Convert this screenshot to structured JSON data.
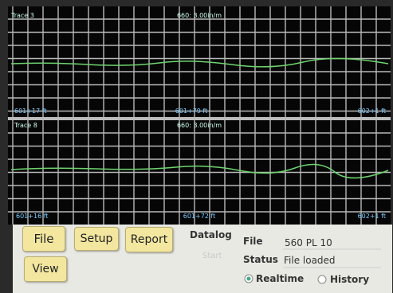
{
  "traces": [
    {
      "title": "Trace 3",
      "scale": "660: 3.00in/m",
      "positions": [
        "601+17 ft",
        "601+79 ft",
        "602+1 ft"
      ]
    },
    {
      "title": "Trace 8",
      "scale": "660: 3.00in/m",
      "positions": [
        "601+16 ft",
        "601+72 ft",
        "602+1 ft"
      ]
    }
  ],
  "buttons": [
    "File",
    "Setup",
    "Report",
    "View"
  ],
  "datalog": {
    "label": "Datalog",
    "button": "Start"
  },
  "info": {
    "file_label": "File",
    "file_value": "560 PL 10",
    "status_label": "Status",
    "status_value": "File loaded"
  },
  "modes": [
    "Realtime",
    "History"
  ]
}
